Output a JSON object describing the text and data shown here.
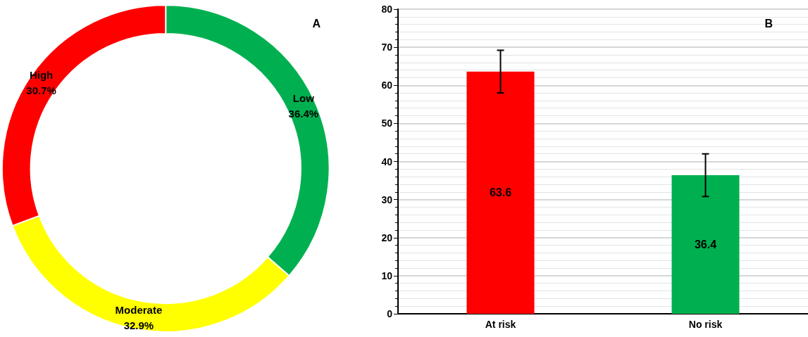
{
  "chart_data": [
    {
      "type": "donut",
      "title": "A",
      "categories": [
        "Low",
        "Moderate",
        "High"
      ],
      "values": [
        36.4,
        32.9,
        30.7
      ],
      "colors": [
        "#00b050",
        "#ffff00",
        "#ff0000"
      ],
      "value_labels": [
        "36.4%",
        "32.9%",
        "30.7%"
      ],
      "legend": false
    },
    {
      "type": "bar",
      "title": "B",
      "categories": [
        "At risk",
        "No risk"
      ],
      "values": [
        63.6,
        36.4
      ],
      "colors": [
        "#ff0000",
        "#00b050"
      ],
      "errors": [
        [
          58,
          69.2
        ],
        [
          30.8,
          42
        ]
      ],
      "ylim": [
        0,
        80
      ],
      "yticks": [
        0,
        10,
        20,
        30,
        40,
        50,
        60,
        70,
        80
      ],
      "grid": true,
      "data_labels": true,
      "legend": false
    }
  ]
}
